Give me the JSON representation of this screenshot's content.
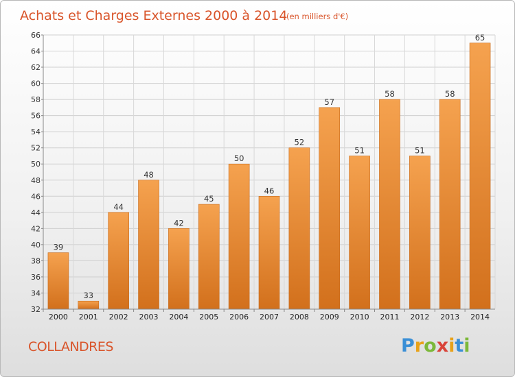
{
  "chart_data": {
    "type": "bar",
    "title": "Achats et Charges Externes 2000 à 2014",
    "subtitle": "(en milliers d'€)",
    "categories": [
      "2000",
      "2001",
      "2002",
      "2003",
      "2004",
      "2005",
      "2006",
      "2007",
      "2008",
      "2009",
      "2010",
      "2011",
      "2012",
      "2013",
      "2014"
    ],
    "values": [
      39,
      33,
      44,
      48,
      42,
      45,
      50,
      46,
      52,
      57,
      51,
      58,
      51,
      58,
      65
    ],
    "xlabel": "",
    "ylabel": "",
    "ylim": [
      32,
      66
    ],
    "yticks": [
      32,
      34,
      36,
      38,
      40,
      42,
      44,
      46,
      48,
      50,
      52,
      54,
      56,
      58,
      60,
      62,
      64,
      66
    ],
    "grid": true,
    "bar_color_top": "#f5a24f",
    "bar_color_bottom": "#d2701c"
  },
  "footer": {
    "commune": "COLLANDRES",
    "logo_letters": [
      "P",
      "r",
      "o",
      "x",
      "i",
      "t",
      "i"
    ],
    "logo_colors": [
      "#3a8fd6",
      "#e8a21a",
      "#7cb83a",
      "#d9443a",
      "#e8a21a",
      "#3a8fd6",
      "#7cb83a"
    ]
  }
}
